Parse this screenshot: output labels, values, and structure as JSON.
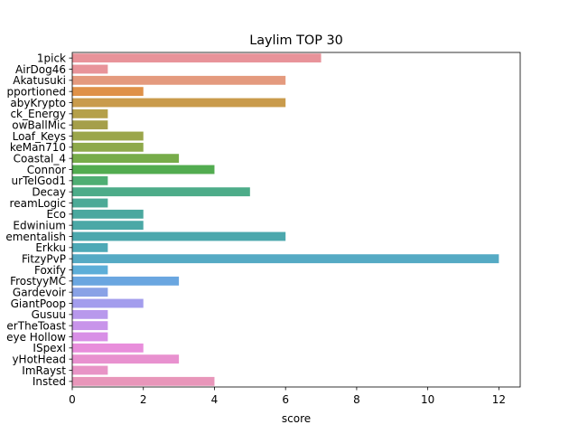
{
  "chart_data": {
    "type": "bar",
    "orientation": "horizontal",
    "title": "Laylim TOP 30",
    "xlabel": "score",
    "ylabel": "",
    "xlim": [
      0,
      12.6
    ],
    "xticks": [
      "0",
      "2",
      "4",
      "6",
      "8",
      "10",
      "12"
    ],
    "grid": false,
    "legend": "none",
    "categories": [
      "1pick",
      "AirDog46",
      "Akatusuki",
      "pportioned",
      "abyKrypto",
      "ck_Energy",
      "owBallMic",
      "Loaf_Keys",
      "keMan710",
      "Coastal_4",
      "Connor",
      "urTelGod1",
      "Decay",
      "reamLogic",
      "Eco",
      "Edwinium",
      "ementalish",
      "Erkku",
      "FitzyPvP",
      "Foxify",
      "FrostyyMC",
      "Gardevoir",
      "GiantPoop",
      "Gusuu",
      "erTheToast",
      "eye Hollow",
      "ISpexI",
      "yHotHead",
      "ImRayst",
      "Insted"
    ],
    "values": [
      7,
      1,
      6,
      2,
      6,
      1,
      1,
      2,
      2,
      3,
      4,
      1,
      5,
      1,
      2,
      2,
      6,
      1,
      12,
      1,
      3,
      1,
      2,
      1,
      1,
      1,
      2,
      3,
      1,
      4
    ],
    "colors": [
      "#e8939a",
      "#e8949a",
      "#e49a7e",
      "#df9148",
      "#c99b4c",
      "#b5a04a",
      "#a59f4a",
      "#9ba64b",
      "#8ea94a",
      "#77ac4a",
      "#52ac50",
      "#4fae73",
      "#4dac89",
      "#4caa97",
      "#4aa89f",
      "#4ba8a6",
      "#4ca8ad",
      "#4ea9b6",
      "#55aac4",
      "#5caed8",
      "#6aa6e0",
      "#89a2e6",
      "#a39ded",
      "#b898ec",
      "#c894ea",
      "#d88fe6",
      "#e88edb",
      "#e891cf",
      "#e894c6",
      "#e896ba"
    ]
  }
}
